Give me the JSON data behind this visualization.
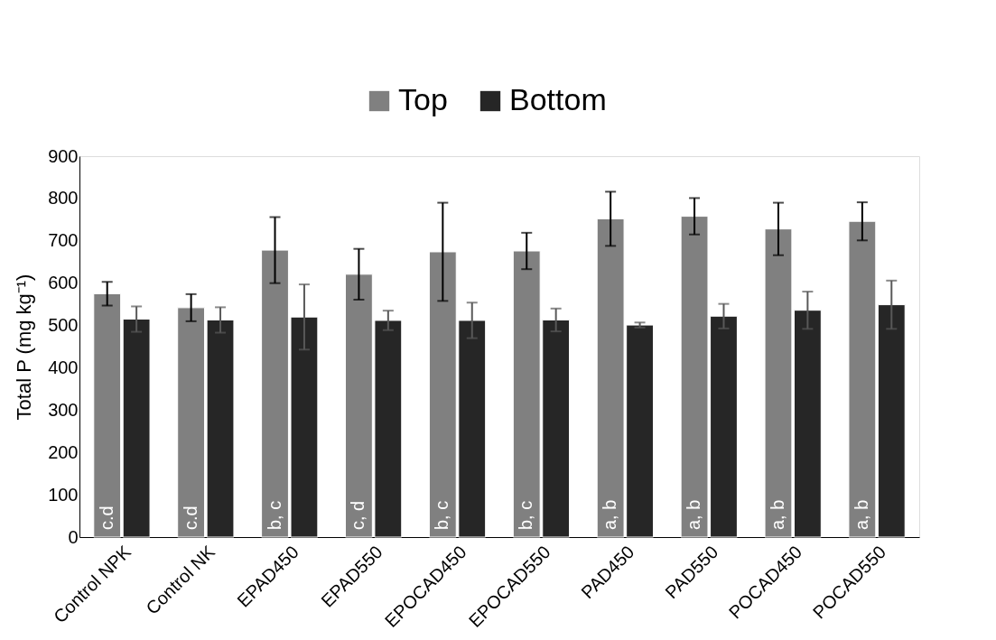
{
  "chart_data": {
    "type": "bar",
    "ylabel": "Total P (mg kg⁻¹)",
    "categories": [
      "Control NPK",
      "Control NK",
      "EPAD450",
      "EPAD550",
      "EPOCAD450",
      "EPOCAD550",
      "PAD450",
      "PAD550",
      "POCAD450",
      "POCAD550"
    ],
    "series": [
      {
        "name": "Top",
        "color": "#808080",
        "values": [
          575,
          542,
          678,
          621,
          674,
          676,
          752,
          758,
          728,
          746
        ],
        "errors": [
          28,
          32,
          78,
          60,
          116,
          43,
          64,
          43,
          62,
          45
        ]
      },
      {
        "name": "Bottom",
        "color": "#262626",
        "values": [
          515,
          513,
          520,
          512,
          512,
          513,
          501,
          522,
          536,
          549
        ],
        "errors": [
          30,
          30,
          77,
          23,
          42,
          27,
          6,
          29,
          44,
          57
        ]
      }
    ],
    "ylim": [
      0,
      900
    ],
    "yticks": [
      0,
      100,
      200,
      300,
      400,
      500,
      600,
      700,
      800,
      900
    ],
    "grid": false,
    "legend": "top",
    "annotations": [
      "c.d",
      "c.d",
      "b, c",
      "c, d",
      "b, c",
      "b, c",
      "a, b",
      "a, b",
      "a, b",
      "a, b"
    ]
  }
}
